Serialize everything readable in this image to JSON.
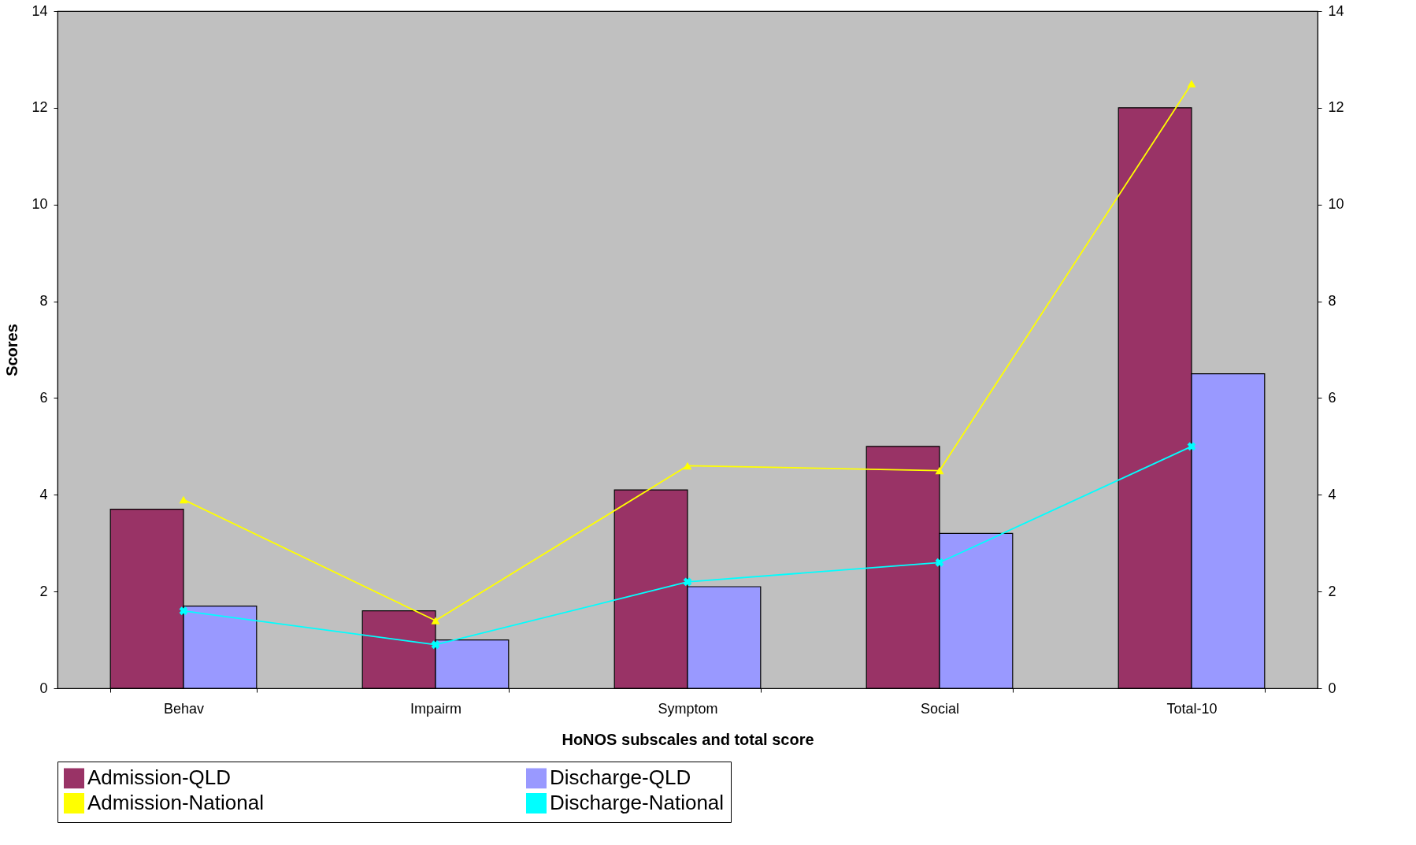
{
  "chart_data": {
    "type": "bar",
    "xlabel": "HoNOS subscales and total score",
    "ylabel": "Scores",
    "categories": [
      "Behav",
      "Impairm",
      "Symptom",
      "Social",
      "Total-10"
    ],
    "series": [
      {
        "name": "Admission-QLD",
        "color": "#993366",
        "values": [
          3.7,
          1.6,
          4.1,
          5.0,
          12.0
        ]
      },
      {
        "name": "Discharge-QLD",
        "color": "#9999ff",
        "values": [
          1.7,
          1.0,
          2.1,
          3.2,
          6.5
        ]
      },
      {
        "name": "Admission-National",
        "type": "line",
        "color": "#ffff00",
        "marker": "triangle",
        "values": [
          3.9,
          1.4,
          4.6,
          4.5,
          12.5
        ]
      },
      {
        "name": "Discharge-National",
        "type": "line",
        "color": "#00ffff",
        "marker": "cross",
        "values": [
          1.6,
          0.9,
          2.2,
          2.6,
          5.0
        ]
      }
    ],
    "ylim": [
      0,
      14
    ],
    "yticks": [
      0,
      2,
      4,
      6,
      8,
      10,
      12,
      14
    ],
    "y2lim": [
      0,
      14
    ],
    "y2ticks": [
      0,
      2,
      4,
      6,
      8,
      10,
      12,
      14
    ],
    "grid": false,
    "legend": "bottom"
  }
}
